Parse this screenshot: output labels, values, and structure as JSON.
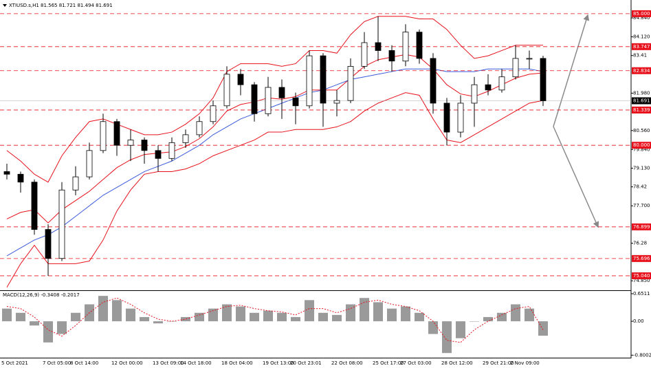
{
  "chart_data": [
    {
      "type": "candlestick",
      "title": "XTIUSD.s,H1  81.565 81.721 81.494 81.691",
      "categories": [
        "5 Oct 2021",
        null,
        null,
        "7 Oct 05:00",
        null,
        "8 Oct 14:00",
        null,
        null,
        "12 Oct 00:00",
        null,
        null,
        "13 Oct 09:00",
        null,
        "14 Oct 18:00",
        null,
        null,
        "18 Oct 04:00",
        null,
        null,
        "19 Oct 13:00",
        null,
        "20 Oct 23:01",
        null,
        null,
        "22 Oct 08:00",
        null,
        null,
        "25 Oct 17:00",
        null,
        "27 Oct 03:00",
        null,
        null,
        "28 Oct 12:00",
        null,
        null,
        "29 Oct 21:00",
        null,
        "2 Nov 09:00",
        null,
        null
      ],
      "open": [
        79.0,
        78.9,
        78.6,
        76.8,
        75.7,
        78.3,
        78.8,
        79.8,
        80.9,
        80.0,
        80.2,
        79.8,
        79.5,
        80.1,
        80.4,
        80.9,
        81.5,
        82.7,
        82.3,
        81.2,
        82.2,
        81.8,
        81.5,
        83.4,
        81.6,
        81.7,
        83.0,
        83.9,
        83.6,
        83.2,
        84.3,
        83.3,
        81.6,
        80.5,
        81.6,
        82.3,
        82.1,
        82.6,
        83.3,
        83.3
      ],
      "high": [
        79.3,
        79.0,
        78.7,
        77.0,
        78.6,
        79.2,
        80.1,
        81.2,
        81.0,
        80.6,
        80.3,
        80.0,
        80.3,
        80.6,
        81.1,
        81.7,
        83.0,
        82.9,
        82.4,
        82.6,
        82.5,
        82.0,
        83.6,
        83.5,
        82.1,
        83.3,
        84.3,
        84.9,
        83.8,
        84.6,
        84.4,
        83.5,
        81.8,
        81.9,
        82.6,
        82.7,
        82.9,
        83.8,
        83.6,
        83.4
      ],
      "low": [
        78.7,
        78.2,
        76.6,
        75.04,
        75.6,
        78.1,
        78.7,
        79.7,
        79.6,
        79.4,
        79.3,
        79.0,
        79.4,
        79.9,
        80.3,
        80.8,
        81.4,
        81.9,
        80.9,
        81.1,
        81.0,
        80.8,
        81.4,
        80.7,
        81.1,
        81.6,
        82.9,
        83.2,
        82.8,
        83.0,
        83.1,
        81.2,
        80.0,
        80.3,
        80.7,
        81.9,
        82.0,
        82.5,
        82.9,
        81.49
      ],
      "close": [
        78.9,
        78.6,
        76.8,
        75.7,
        78.3,
        78.8,
        79.8,
        80.9,
        80.0,
        80.2,
        79.8,
        79.5,
        80.1,
        80.4,
        80.9,
        81.5,
        82.7,
        82.3,
        81.2,
        82.2,
        81.8,
        81.5,
        83.4,
        81.6,
        81.7,
        83.0,
        83.9,
        83.6,
        83.2,
        84.3,
        83.3,
        81.6,
        80.5,
        81.6,
        82.3,
        82.1,
        82.6,
        83.3,
        83.3,
        81.691
      ],
      "overlays": [
        {
          "color": "#e8101a",
          "values": [
            79.8,
            79.4,
            78.9,
            78.6,
            79.6,
            80.3,
            80.9,
            81.0,
            80.8,
            80.6,
            80.4,
            80.4,
            80.5,
            80.8,
            81.2,
            81.8,
            82.8,
            83.1,
            83.1,
            83.1,
            83.0,
            83.1,
            83.6,
            83.6,
            83.5,
            84.2,
            84.7,
            84.9,
            84.9,
            84.9,
            84.8,
            84.8,
            84.4,
            83.8,
            83.3,
            83.4,
            83.6,
            83.8,
            83.8,
            83.8
          ]
        },
        {
          "color": "#e8101a",
          "values": [
            77.2,
            77.45,
            77.55,
            77.05,
            77.55,
            77.9,
            78.25,
            78.7,
            79.15,
            79.45,
            79.65,
            79.7,
            79.75,
            79.95,
            80.25,
            80.7,
            81.3,
            81.55,
            81.65,
            81.8,
            81.75,
            81.85,
            82.1,
            82.1,
            82.1,
            82.55,
            83.0,
            83.25,
            83.35,
            83.45,
            83.35,
            82.9,
            82.3,
            81.95,
            81.85,
            82.05,
            82.3,
            82.55,
            82.7,
            82.75
          ]
        },
        {
          "color": "#e8101a",
          "values": [
            74.6,
            75.5,
            76.2,
            75.5,
            75.5,
            75.5,
            75.6,
            76.4,
            77.5,
            78.3,
            78.9,
            79.0,
            79.0,
            79.1,
            79.3,
            79.6,
            79.8,
            80.0,
            80.2,
            80.5,
            80.5,
            80.6,
            80.6,
            80.6,
            80.7,
            80.9,
            81.3,
            81.6,
            81.8,
            82.0,
            81.9,
            81.0,
            80.2,
            80.1,
            80.4,
            80.7,
            81.0,
            81.3,
            81.6,
            81.7
          ]
        },
        {
          "color": "#3b5bdb",
          "values": [
            75.8,
            76.1,
            76.4,
            76.6,
            76.9,
            77.3,
            77.7,
            78.1,
            78.4,
            78.7,
            79.0,
            79.2,
            79.4,
            79.7,
            80.0,
            80.4,
            80.7,
            81.0,
            81.2,
            81.4,
            81.6,
            81.8,
            82.0,
            82.1,
            82.3,
            82.5,
            82.6,
            82.7,
            82.8,
            82.9,
            82.9,
            82.9,
            82.8,
            82.8,
            82.8,
            82.9,
            82.9,
            82.9,
            82.9,
            82.8
          ]
        }
      ],
      "levels": [
        {
          "value": 85.0,
          "label": "85.000"
        },
        83.747,
        82.834,
        81.339,
        {
          "value": 80.0,
          "label": "80.000"
        },
        76.899,
        75.696,
        {
          "value": 75.04,
          "label": "75.040"
        }
      ],
      "level_color": "#e8101a",
      "last_price": 81.691,
      "ylim": [
        74.49,
        85.52
      ],
      "yticks": [
        {
          "value": 84.84,
          "label": "84.840"
        },
        {
          "value": 84.12,
          "label": "84.120"
        },
        83.41,
        {
          "value": 81.98,
          "label": "81.980"
        },
        {
          "value": 80.56,
          "label": "80.560"
        },
        {
          "value": 79.84,
          "label": "79.840"
        },
        {
          "value": 79.13,
          "label": "79.130"
        },
        78.42,
        {
          "value": 77.7,
          "label": "77.700"
        },
        76.28,
        {
          "value": 74.85,
          "label": "74.850"
        }
      ]
    },
    {
      "type": "macd",
      "title": "MACD(12,26,9) -0.3408 -0.2017",
      "values": [
        0.3,
        0.2,
        -0.1,
        -0.5,
        -0.3,
        0.2,
        0.4,
        0.6,
        0.5,
        0.3,
        0.1,
        -0.05,
        0.0,
        0.1,
        0.2,
        0.3,
        0.4,
        0.35,
        0.2,
        0.25,
        0.2,
        0.1,
        0.5,
        0.2,
        0.15,
        0.4,
        0.55,
        0.45,
        0.3,
        0.35,
        0.2,
        -0.3,
        -0.75,
        -0.4,
        0.0,
        0.1,
        0.2,
        0.4,
        0.3,
        -0.3408
      ],
      "signal": [
        0.35,
        0.3,
        0.1,
        -0.2,
        -0.35,
        -0.1,
        0.2,
        0.45,
        0.55,
        0.4,
        0.2,
        0.05,
        0.0,
        0.05,
        0.15,
        0.25,
        0.35,
        0.38,
        0.3,
        0.25,
        0.22,
        0.15,
        0.3,
        0.3,
        0.2,
        0.3,
        0.45,
        0.5,
        0.4,
        0.35,
        0.25,
        0.0,
        -0.45,
        -0.5,
        -0.2,
        0.0,
        0.15,
        0.3,
        0.35,
        -0.2017
      ],
      "color": "#9a9a9a",
      "signal_color": "#e8101a",
      "ylim": [
        -0.86,
        0.7
      ],
      "yticks": [
        0.6511,
        {
          "value": 0,
          "label": "0.00"
        },
        -0.8002
      ]
    }
  ]
}
